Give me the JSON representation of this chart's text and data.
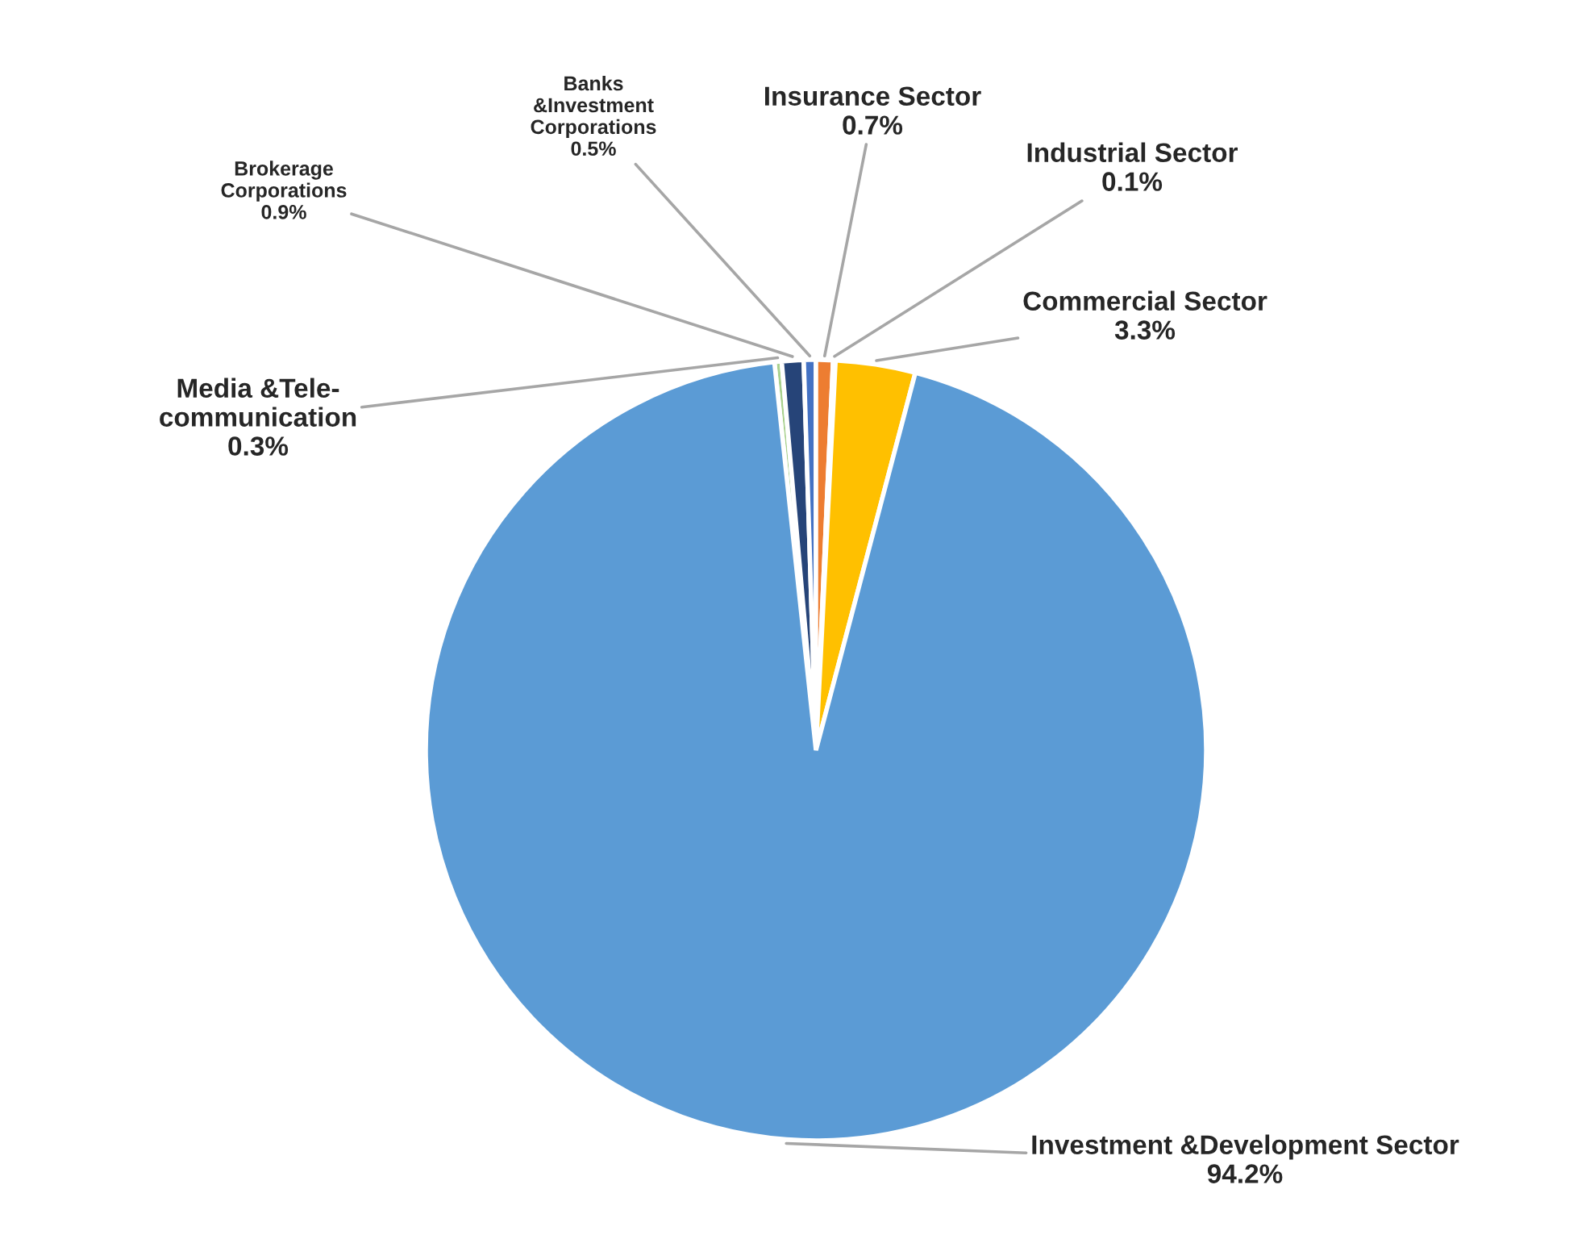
{
  "chart_data": {
    "type": "pie",
    "categories": [
      "Media &Tele-\ncommunication",
      "Brokerage\nCorporations",
      "Banks\n&Investment\nCorporations",
      "Insurance Sector",
      "Industrial Sector",
      "Commercial Sector",
      "Investment &Development Sector"
    ],
    "values": [
      0.3,
      0.9,
      0.5,
      0.7,
      0.1,
      3.3,
      94.2
    ],
    "value_labels": [
      "0.3%",
      "0.9%",
      "0.5%",
      "0.7%",
      "0.1%",
      "3.3%",
      "94.2%"
    ],
    "colors": [
      "#a9d18e",
      "#264478",
      "#4472c4",
      "#ed7d31",
      "#a5a5a5",
      "#ffc000",
      "#5b9bd5"
    ],
    "legend": false
  }
}
